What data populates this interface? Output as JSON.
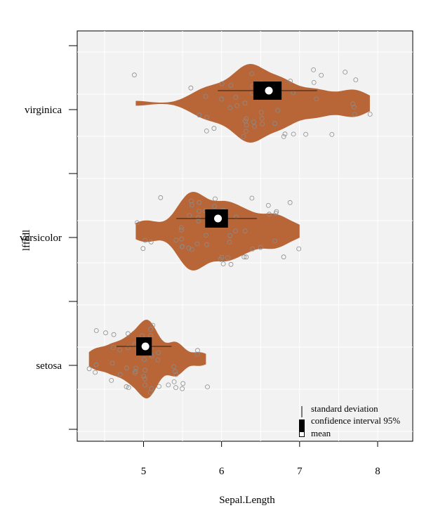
{
  "chart_data": {
    "type": "violin",
    "title": "",
    "xlabel": "Sepal.Length",
    "ylabel": "lfffdl",
    "xlim": [
      4.15,
      8.45
    ],
    "xticks": [
      5,
      6,
      7,
      8
    ],
    "categories": [
      "setosa",
      "versicolor",
      "virginica"
    ],
    "violin_color": "#b86637",
    "panel_bg": "#f2f2f2",
    "grid": true,
    "series": [
      {
        "category": "setosa",
        "mean": 5.006,
        "sd": 0.352,
        "ci95": [
          4.906,
          5.106
        ],
        "min": 4.3,
        "max": 5.8,
        "values": [
          5.1,
          4.9,
          4.7,
          4.6,
          5.0,
          5.4,
          4.6,
          5.0,
          4.4,
          4.9,
          5.4,
          4.8,
          4.8,
          4.3,
          5.8,
          5.7,
          5.4,
          5.1,
          5.7,
          5.1,
          5.4,
          5.1,
          4.6,
          5.1,
          4.8,
          5.0,
          5.0,
          5.2,
          5.2,
          4.7,
          4.8,
          5.4,
          5.2,
          5.5,
          4.9,
          5.0,
          5.5,
          4.9,
          4.4,
          5.1,
          5.0,
          4.5,
          4.4,
          5.0,
          5.1,
          4.8,
          5.1,
          4.6,
          5.3,
          5.0
        ]
      },
      {
        "category": "versicolor",
        "mean": 5.936,
        "sd": 0.516,
        "ci95": [
          5.79,
          6.082
        ],
        "min": 4.9,
        "max": 7.0,
        "values": [
          7.0,
          6.4,
          6.9,
          5.5,
          6.5,
          5.7,
          6.3,
          4.9,
          6.6,
          5.2,
          5.0,
          5.9,
          6.0,
          6.1,
          5.6,
          6.7,
          5.6,
          5.8,
          6.2,
          5.6,
          5.9,
          6.1,
          6.3,
          6.1,
          6.4,
          6.6,
          6.8,
          6.7,
          6.0,
          5.7,
          5.5,
          5.5,
          5.8,
          6.0,
          5.4,
          6.0,
          6.7,
          6.3,
          5.6,
          5.5,
          5.5,
          6.1,
          5.8,
          5.0,
          5.6,
          5.7,
          5.7,
          6.2,
          5.1,
          5.7
        ]
      },
      {
        "category": "virginica",
        "mean": 6.588,
        "sd": 0.636,
        "ci95": [
          6.407,
          6.769
        ],
        "min": 4.9,
        "max": 7.9,
        "values": [
          6.3,
          5.8,
          7.1,
          6.3,
          6.5,
          7.6,
          4.9,
          7.3,
          6.7,
          7.2,
          6.5,
          6.4,
          6.8,
          5.7,
          5.8,
          6.4,
          6.5,
          7.7,
          7.7,
          6.0,
          6.9,
          5.6,
          7.7,
          6.3,
          6.7,
          7.2,
          6.2,
          6.1,
          6.4,
          7.2,
          7.4,
          7.9,
          6.4,
          6.3,
          6.1,
          7.7,
          6.3,
          6.4,
          6.0,
          6.9,
          6.7,
          6.9,
          5.8,
          6.8,
          6.7,
          6.7,
          6.3,
          6.5,
          6.2,
          5.9
        ]
      }
    ],
    "legend": {
      "position": "bottom-right",
      "entries": [
        "standard deviation",
        "confidence interval 95%",
        "mean"
      ]
    }
  }
}
